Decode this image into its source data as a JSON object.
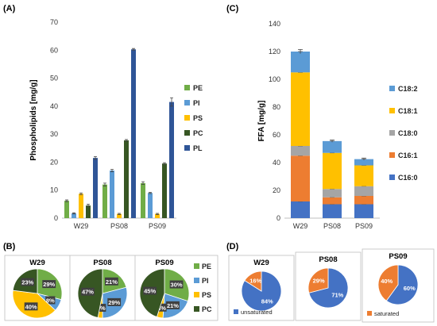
{
  "colors": {
    "PE": "#70ad47",
    "PI": "#5b9bd5",
    "PS": "#ffc000",
    "PC": "#375623",
    "PL": "#2f5597",
    "C18_2": "#5b9bd5",
    "C18_1": "#ffc000",
    "C18_0": "#a5a5a5",
    "C16_1": "#ed7d31",
    "C16_0": "#4472c4",
    "unsaturated": "#4472c4",
    "saturated": "#ed7d31"
  },
  "chart_data": [
    {
      "panel": "(A)",
      "type": "bar",
      "ylabel": "Phospholipids [mg/g]",
      "ylim": [
        0,
        70
      ],
      "yticks": [
        0,
        10,
        20,
        30,
        40,
        50,
        60,
        70
      ],
      "categories": [
        "W29",
        "PS08",
        "PS09"
      ],
      "series": [
        {
          "name": "PE",
          "values": [
            6.2,
            12.0,
            12.5
          ],
          "errors": [
            0.3,
            0.5,
            0.5
          ]
        },
        {
          "name": "PI",
          "values": [
            1.7,
            17.0,
            9.0
          ],
          "errors": [
            0.2,
            0.4,
            0.2
          ]
        },
        {
          "name": "PS",
          "values": [
            8.7,
            1.5,
            1.5
          ],
          "errors": [
            0.3,
            0.2,
            0.2
          ]
        },
        {
          "name": "PC",
          "values": [
            4.5,
            27.8,
            19.5
          ],
          "errors": [
            0.5,
            0.3,
            0.3
          ]
        },
        {
          "name": "PL",
          "values": [
            21.5,
            60.3,
            41.5
          ],
          "errors": [
            0.5,
            0.3,
            1.5
          ]
        }
      ]
    },
    {
      "panel": "(C)",
      "type": "bar",
      "stacked": true,
      "ylabel": "FFA [mg/g]",
      "ylim": [
        0,
        140
      ],
      "yticks": [
        0,
        20,
        40,
        60,
        80,
        100,
        120,
        140
      ],
      "categories": [
        "W29",
        "PS08",
        "PS09"
      ],
      "series": [
        {
          "name": "C16:0",
          "key": "C16_0",
          "values": [
            12.0,
            10.0,
            10.0
          ]
        },
        {
          "name": "C16:1",
          "key": "C16_1",
          "values": [
            33.0,
            5.0,
            6.0
          ]
        },
        {
          "name": "C18:0",
          "key": "C18_0",
          "values": [
            7.0,
            6.0,
            7.0
          ]
        },
        {
          "name": "C18:1",
          "key": "C18_1",
          "values": [
            53.0,
            26.0,
            15.0
          ]
        },
        {
          "name": "C18:2",
          "key": "C18_2",
          "values": [
            15.0,
            8.5,
            4.5
          ]
        }
      ],
      "total_errors": [
        1.5,
        0.8,
        0.8
      ]
    },
    {
      "panel": "(B)",
      "type": "pie",
      "legend": [
        "PE",
        "PI",
        "PS",
        "PC"
      ],
      "pies": [
        {
          "title": "W29",
          "slices": [
            {
              "name": "PE",
              "value": 29
            },
            {
              "name": "PI",
              "value": 8
            },
            {
              "name": "PS",
              "value": 40
            },
            {
              "name": "PC",
              "value": 23
            }
          ]
        },
        {
          "title": "PS08",
          "slices": [
            {
              "name": "PE",
              "value": 21
            },
            {
              "name": "PI",
              "value": 29
            },
            {
              "name": "PS",
              "value": 3
            },
            {
              "name": "PC",
              "value": 47
            }
          ]
        },
        {
          "title": "PS09",
          "slices": [
            {
              "name": "PE",
              "value": 30
            },
            {
              "name": "PI",
              "value": 21
            },
            {
              "name": "PS",
              "value": 4
            },
            {
              "name": "PC",
              "value": 45
            }
          ]
        }
      ]
    },
    {
      "panel": "(D)",
      "type": "pie",
      "pies": [
        {
          "title": "W29",
          "slices": [
            {
              "name": "unsaturated",
              "value": 84
            },
            {
              "name": "saturated",
              "value": 16
            }
          ],
          "legend": "unsaturated"
        },
        {
          "title": "PS08",
          "slices": [
            {
              "name": "unsaturated",
              "value": 71
            },
            {
              "name": "saturated",
              "value": 29
            }
          ]
        },
        {
          "title": "PS09",
          "slices": [
            {
              "name": "unsaturated",
              "value": 60
            },
            {
              "name": "saturated",
              "value": 40
            }
          ],
          "legend": "saturated"
        }
      ]
    }
  ]
}
